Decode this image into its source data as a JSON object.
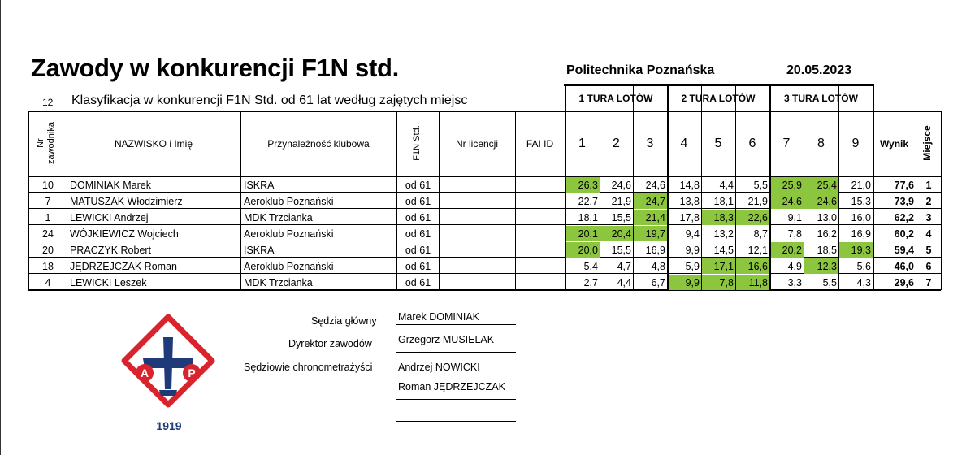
{
  "header": {
    "title": "Zawody w konkurencji F1N std.",
    "organizer": "Politechnika Poznańska",
    "date": "20.05.2023",
    "class_number": "12",
    "classification": "Klasyfikacja w konkurencji F1N Std. od 61 lat według zajętych miejsc"
  },
  "columns": {
    "nr_zawodnika": "Nr zawodnika",
    "name": "NAZWISKO i Imię",
    "club": "Przynależność klubowa",
    "category": "F1N Std.",
    "license": "Nr licencji",
    "fai": "FAI ID",
    "round1": "1 TURA LOTÓW",
    "round2": "2 TURA LOTÓW",
    "round3": "3 TURA LOTÓW",
    "flights": [
      "1",
      "2",
      "3",
      "4",
      "5",
      "6",
      "7",
      "8",
      "9"
    ],
    "result": "Wynik",
    "place": "Miejsce"
  },
  "rows": [
    {
      "nr": "10",
      "name": "DOMINIAK Marek",
      "club": "ISKRA",
      "cat": "od 61",
      "license": "",
      "fai": "",
      "flights": [
        "26,3",
        "24,6",
        "24,6",
        "14,8",
        "4,4",
        "5,5",
        "25,9",
        "25,4",
        "21,0"
      ],
      "best": [
        true,
        false,
        false,
        false,
        false,
        false,
        true,
        true,
        false
      ],
      "result": "77,6",
      "place": "1"
    },
    {
      "nr": "7",
      "name": "MATUSZAK Włodzimierz",
      "club": "Aeroklub Poznański",
      "cat": "od 61",
      "license": "",
      "fai": "",
      "flights": [
        "22,7",
        "21,9",
        "24,7",
        "13,8",
        "18,1",
        "21,9",
        "24,6",
        "24,6",
        "15,3"
      ],
      "best": [
        false,
        false,
        true,
        false,
        false,
        false,
        true,
        true,
        false
      ],
      "result": "73,9",
      "place": "2"
    },
    {
      "nr": "1",
      "name": "LEWICKI Andrzej",
      "club": "MDK Trzcianka",
      "cat": "od 61",
      "license": "",
      "fai": "",
      "flights": [
        "18,1",
        "15,5",
        "21,4",
        "17,8",
        "18,3",
        "22,6",
        "9,1",
        "13,0",
        "16,0"
      ],
      "best": [
        false,
        false,
        true,
        false,
        true,
        true,
        false,
        false,
        false
      ],
      "result": "62,2",
      "place": "3"
    },
    {
      "nr": "24",
      "name": "WÓJKIEWICZ Wojciech",
      "club": "Aeroklub Poznański",
      "cat": "od 61",
      "license": "",
      "fai": "",
      "flights": [
        "20,1",
        "20,4",
        "19,7",
        "9,4",
        "13,2",
        "8,7",
        "7,8",
        "16,2",
        "16,9"
      ],
      "best": [
        true,
        true,
        true,
        false,
        false,
        false,
        false,
        false,
        false
      ],
      "result": "60,2",
      "place": "4"
    },
    {
      "nr": "20",
      "name": "PRACZYK Robert",
      "club": "ISKRA",
      "cat": "od 61",
      "license": "",
      "fai": "",
      "flights": [
        "20,0",
        "15,5",
        "16,9",
        "9,9",
        "14,5",
        "12,1",
        "20,2",
        "18,5",
        "19,3"
      ],
      "best": [
        true,
        false,
        false,
        false,
        false,
        false,
        true,
        false,
        true
      ],
      "result": "59,4",
      "place": "5"
    },
    {
      "nr": "18",
      "name": "JĘDRZEJCZAK Roman",
      "club": "Aeroklub Poznański",
      "cat": "od 61",
      "license": "",
      "fai": "",
      "flights": [
        "5,4",
        "4,7",
        "4,8",
        "5,9",
        "17,1",
        "16,6",
        "4,9",
        "12,3",
        "5,6"
      ],
      "best": [
        false,
        false,
        false,
        false,
        true,
        true,
        false,
        true,
        false
      ],
      "result": "46,0",
      "place": "6"
    },
    {
      "nr": "4",
      "name": "LEWICKI Leszek",
      "club": "MDK Trzcianka",
      "cat": "od 61",
      "license": "",
      "fai": "",
      "flights": [
        "2,7",
        "4,4",
        "6,7",
        "9,9",
        "7,8",
        "11,8",
        "3,3",
        "5,5",
        "4,3"
      ],
      "best": [
        false,
        false,
        false,
        true,
        true,
        true,
        false,
        false,
        false
      ],
      "result": "29,6",
      "place": "7"
    }
  ],
  "officials": {
    "chief_judge_label": "Sędzia główny",
    "chief_judge": "Marek DOMINIAK",
    "director_label": "Dyrektor zawodów",
    "director": "Grzegorz MUSIELAK",
    "timekeepers_label": "Sędziowie chronometrażyści",
    "timekeeper_1": "Andrzej NOWICKI",
    "timekeeper_2": "Roman JĘDRZEJCZAK"
  },
  "logo": {
    "letters": [
      "A",
      "P"
    ],
    "year": "1919",
    "colors": {
      "red": "#d9232d",
      "blue": "#1e3a78"
    }
  },
  "colors": {
    "best_flight": "#8cc63f"
  }
}
